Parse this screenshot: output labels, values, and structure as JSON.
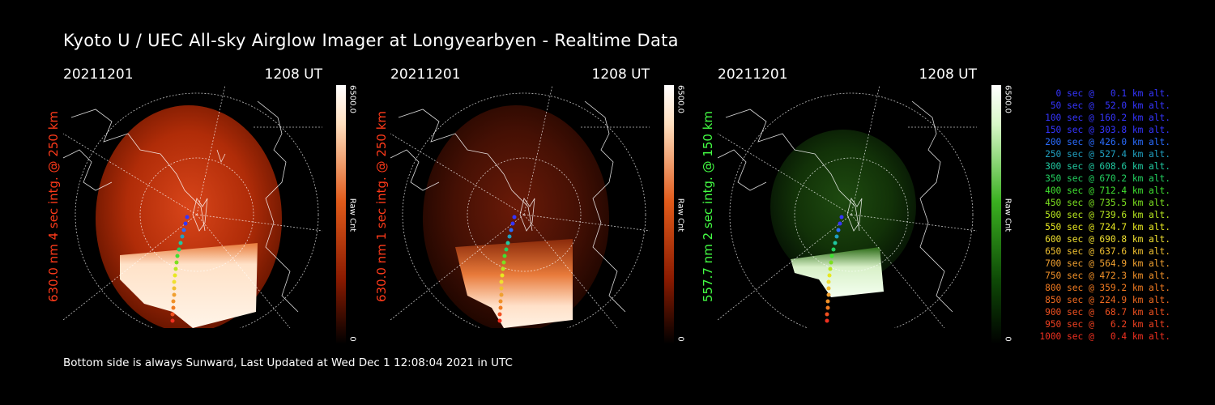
{
  "title": "Kyoto U / UEC All-sky Airglow Imager at Longyearbyen - Realtime Data",
  "panels": [
    {
      "date": "20211201",
      "time": "1208 UT",
      "side_label": "630.0 nm 4 sec intg. @ 250 km",
      "side_color": "#ff3a1a",
      "cbar_max": "6500.0",
      "cbar_min": "0",
      "cbar_unit": "Raw Cnt",
      "cmap": "red"
    },
    {
      "date": "20211201",
      "time": "1208 UT",
      "side_label": "630.0 nm 1 sec intg. @ 250 km",
      "side_color": "#ff3a1a",
      "cbar_max": "6500.0",
      "cbar_min": "0",
      "cbar_unit": "Raw Cnt",
      "cmap": "red"
    },
    {
      "date": "20211201",
      "time": "1208 UT",
      "side_label": "557.7 nm 2 sec intg. @ 150 km",
      "side_color": "#44ff44",
      "cbar_max": "6500.0",
      "cbar_min": "0",
      "cbar_unit": "Raw Cnt",
      "cmap": "green"
    }
  ],
  "legend": [
    {
      "text": "0 sec @   0.1 km alt.",
      "color": "#3535ff"
    },
    {
      "text": "50 sec @  52.0 km alt.",
      "color": "#3535ff"
    },
    {
      "text": "100 sec @ 160.2 km alt.",
      "color": "#3535ff"
    },
    {
      "text": "150 sec @ 303.8 km alt.",
      "color": "#3535ff"
    },
    {
      "text": "200 sec @ 426.0 km alt.",
      "color": "#2a6cff"
    },
    {
      "text": "250 sec @ 527.4 km alt.",
      "color": "#20a0c0"
    },
    {
      "text": "300 sec @ 608.6 km alt.",
      "color": "#20c8a0"
    },
    {
      "text": "350 sec @ 670.2 km alt.",
      "color": "#22d060"
    },
    {
      "text": "400 sec @ 712.4 km alt.",
      "color": "#40e030"
    },
    {
      "text": "450 sec @ 735.5 km alt.",
      "color": "#7ce020"
    },
    {
      "text": "500 sec @ 739.6 km alt.",
      "color": "#b8e820"
    },
    {
      "text": "550 sec @ 724.7 km alt.",
      "color": "#e8e820"
    },
    {
      "text": "600 sec @ 690.8 km alt.",
      "color": "#f0e030"
    },
    {
      "text": "650 sec @ 637.6 km alt.",
      "color": "#f0c030"
    },
    {
      "text": "700 sec @ 564.9 km alt.",
      "color": "#f0a030"
    },
    {
      "text": "750 sec @ 472.3 km alt.",
      "color": "#f09028"
    },
    {
      "text": "800 sec @ 359.2 km alt.",
      "color": "#f07a20"
    },
    {
      "text": "850 sec @ 224.9 km alt.",
      "color": "#f06a20"
    },
    {
      "text": "900 sec @  68.7 km alt.",
      "color": "#f05020"
    },
    {
      "text": "950 sec @   6.2 km alt.",
      "color": "#f04020"
    },
    {
      "text": "1000 sec @   0.4 km alt.",
      "color": "#f03020"
    }
  ],
  "footer": "Bottom side is always Sunward, Last Updated at Wed Dec  1 12:08:04 2021 in UTC"
}
